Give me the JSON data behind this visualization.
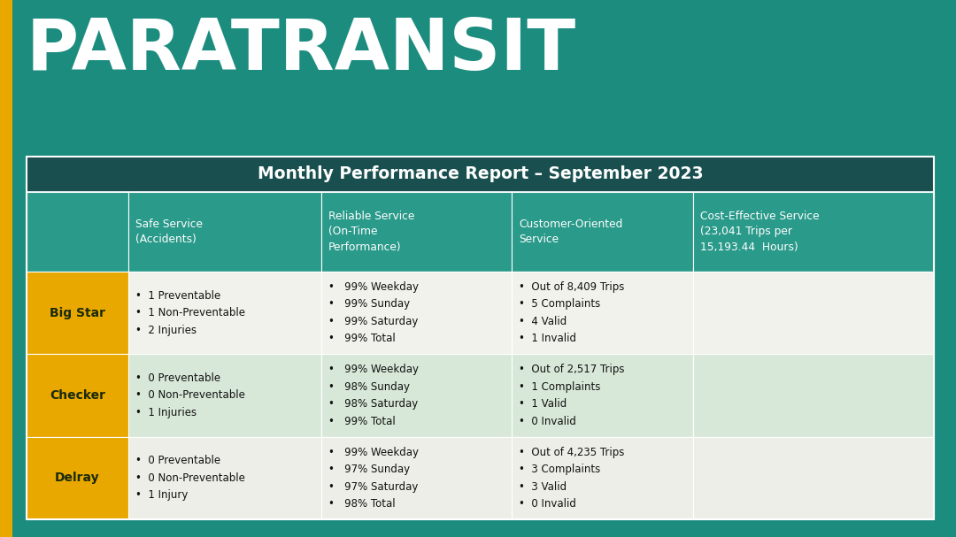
{
  "title": "PARATRANSIT",
  "table_title": "Monthly Performance Report – September 2023",
  "bg_color": "#1b8c7e",
  "gold_color": "#E8A800",
  "header_bg": "#1a4f4f",
  "col_header_bg": "#2a9a8a",
  "row1_bg": "#f2f2ec",
  "row2_bg": "#d8e8d8",
  "row3_bg": "#eeeee8",
  "col_headers": [
    "",
    "Safe Service\n(Accidents)",
    "Reliable Service\n(On-Time\nPerformance)",
    "Customer-Oriented\nService",
    "Cost-Effective Service\n(23,041 Trips per\n15,193.44  Hours)"
  ],
  "rows": [
    {
      "name": "Big Star",
      "safe": "•  1 Preventable\n•  1 Non-Preventable\n•  2 Injuries",
      "reliable": "•   99% Weekday\n•   99% Sunday\n•   99% Saturday\n•   99% Total",
      "customer": "•  Out of 8,409 Trips\n•  5 Complaints\n•  4 Valid\n•  1 Invalid",
      "cost": ""
    },
    {
      "name": "Checker",
      "safe": "•  0 Preventable\n•  0 Non-Preventable\n•  1 Injuries",
      "reliable": "•   99% Weekday\n•   98% Sunday\n•   98% Saturday\n•   99% Total",
      "customer": "•  Out of 2,517 Trips\n•  1 Complaints\n•  1 Valid\n•  0 Invalid",
      "cost": ""
    },
    {
      "name": "Delray",
      "safe": "•  0 Preventable\n•  0 Non-Preventable\n•  1 Injury",
      "reliable": "•   99% Weekday\n•   97% Sunday\n•   97% Saturday\n•   98% Total",
      "customer": "•  Out of 4,235 Trips\n•  3 Complaints\n•  3 Valid\n•  0 Invalid",
      "cost": ""
    }
  ]
}
